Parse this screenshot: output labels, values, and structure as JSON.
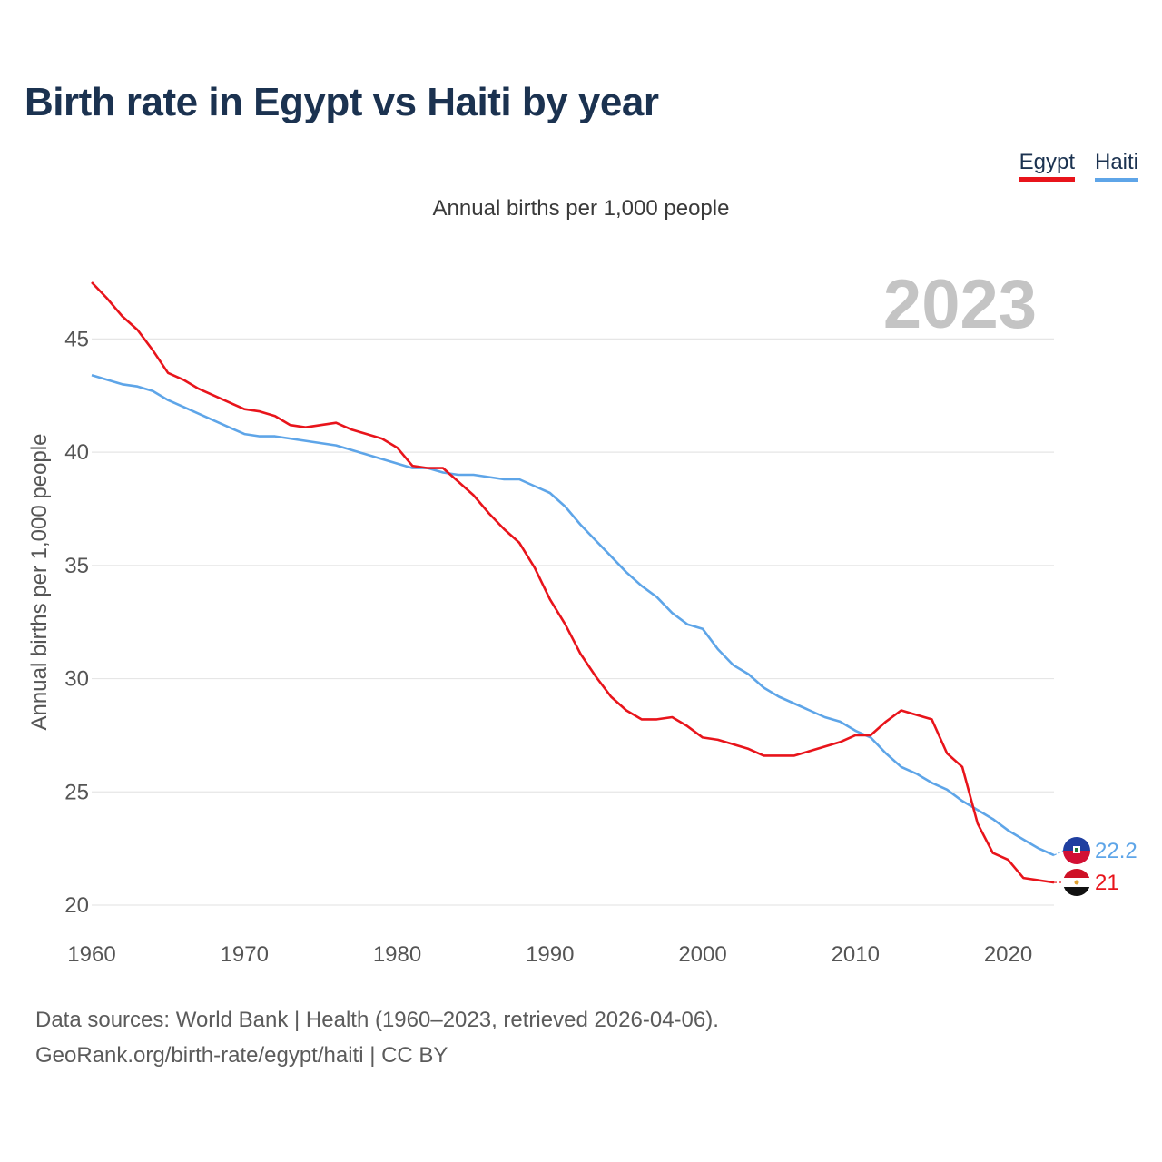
{
  "header": {
    "title": "Birth rate in Egypt vs Haiti by year",
    "subtitle": "Annual births per 1,000 people"
  },
  "legend": [
    {
      "name": "Egypt",
      "color": "#e8141b"
    },
    {
      "name": "Haiti",
      "color": "#5ea5e8"
    }
  ],
  "year_watermark": "2023",
  "footer": {
    "line1": "Data sources: World Bank | Health (1960–2023, retrieved 2026-04-06).",
    "line2": "GeoRank.org/birth-rate/egypt/haiti | CC BY"
  },
  "chart_data": {
    "type": "line",
    "title": "Birth rate in Egypt vs Haiti by year",
    "xlabel": "",
    "ylabel": "Annual births per 1,000 people",
    "xlim": [
      1960,
      2023
    ],
    "ylim": [
      20,
      47.5
    ],
    "yticks": [
      20,
      25,
      30,
      35,
      40,
      45
    ],
    "xticks": [
      1960,
      1970,
      1980,
      1990,
      2000,
      2010,
      2020
    ],
    "grid": true,
    "legend_position": "top-right",
    "x": [
      1960,
      1961,
      1962,
      1963,
      1964,
      1965,
      1966,
      1967,
      1968,
      1969,
      1970,
      1971,
      1972,
      1973,
      1974,
      1975,
      1976,
      1977,
      1978,
      1979,
      1980,
      1981,
      1982,
      1983,
      1984,
      1985,
      1986,
      1987,
      1988,
      1989,
      1990,
      1991,
      1992,
      1993,
      1994,
      1995,
      1996,
      1997,
      1998,
      1999,
      2000,
      2001,
      2002,
      2003,
      2004,
      2005,
      2006,
      2007,
      2008,
      2009,
      2010,
      2011,
      2012,
      2013,
      2014,
      2015,
      2016,
      2017,
      2018,
      2019,
      2020,
      2021,
      2022,
      2023
    ],
    "series": [
      {
        "name": "Egypt",
        "color": "#e8141b",
        "end_label": "21",
        "flag": "egypt-flag-icon",
        "values": [
          47.5,
          46.8,
          46.0,
          45.4,
          44.5,
          43.5,
          43.2,
          42.8,
          42.5,
          42.2,
          41.9,
          41.8,
          41.6,
          41.2,
          41.1,
          41.2,
          41.3,
          41.0,
          40.8,
          40.6,
          40.2,
          39.4,
          39.3,
          39.3,
          38.7,
          38.1,
          37.3,
          36.6,
          36.0,
          34.9,
          33.5,
          32.4,
          31.1,
          30.1,
          29.2,
          28.6,
          28.2,
          28.2,
          28.3,
          27.9,
          27.4,
          27.3,
          27.1,
          26.9,
          26.6,
          26.6,
          26.6,
          26.8,
          27.0,
          27.2,
          27.5,
          27.5,
          28.1,
          28.6,
          28.4,
          28.2,
          26.7,
          26.1,
          23.6,
          22.3,
          22.0,
          21.2,
          21.1,
          21.0
        ]
      },
      {
        "name": "Haiti",
        "color": "#5ea5e8",
        "end_label": "22.2",
        "flag": "haiti-flag-icon",
        "values": [
          43.4,
          43.2,
          43.0,
          42.9,
          42.7,
          42.3,
          42.0,
          41.7,
          41.4,
          41.1,
          40.8,
          40.7,
          40.7,
          40.6,
          40.5,
          40.4,
          40.3,
          40.1,
          39.9,
          39.7,
          39.5,
          39.3,
          39.3,
          39.1,
          39.0,
          39.0,
          38.9,
          38.8,
          38.8,
          38.5,
          38.2,
          37.6,
          36.8,
          36.1,
          35.4,
          34.7,
          34.1,
          33.6,
          32.9,
          32.4,
          32.2,
          31.3,
          30.6,
          30.2,
          29.6,
          29.2,
          28.9,
          28.6,
          28.3,
          28.1,
          27.7,
          27.4,
          26.7,
          26.1,
          25.8,
          25.4,
          25.1,
          24.6,
          24.2,
          23.8,
          23.3,
          22.9,
          22.5,
          22.2
        ]
      }
    ]
  }
}
